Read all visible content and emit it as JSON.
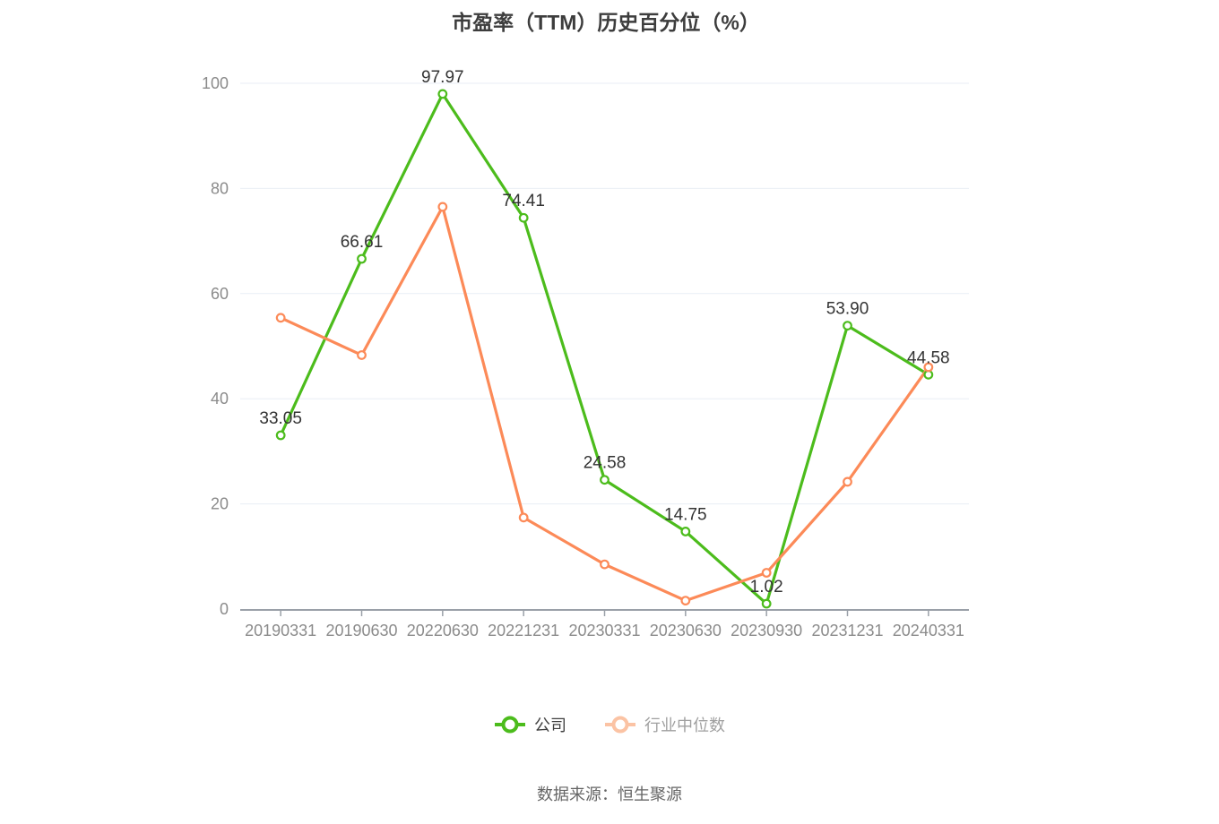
{
  "title": "市盈率（TTM）历史百分位（%）",
  "source": "数据来源：恒生聚源",
  "legend": {
    "items": [
      {
        "label": "公司",
        "color": "#4cbc1c",
        "text_color": "#404040"
      },
      {
        "label": "行业中位数",
        "color": "#fbc3a4",
        "text_color": "#a0a0a0"
      }
    ]
  },
  "chart_data": {
    "type": "line",
    "title": "市盈率（TTM）历史百分位（%）",
    "categories": [
      "20190331",
      "20190630",
      "20220630",
      "20221231",
      "20230331",
      "20230630",
      "20230930",
      "20231231",
      "20240331"
    ],
    "series": [
      {
        "name": "公司",
        "color": "#4cbc1c",
        "values": [
          33.05,
          66.61,
          97.97,
          74.41,
          24.58,
          14.75,
          1.02,
          53.9,
          44.58
        ],
        "data_labels": [
          "33.05",
          "66.61",
          "97.97",
          "74.41",
          "24.58",
          "14.75",
          "1.02",
          "53.90",
          "44.58"
        ]
      },
      {
        "name": "行业中位数",
        "color": "#fc8a58",
        "values": [
          55.4,
          48.3,
          76.5,
          17.4,
          8.5,
          1.6,
          6.9,
          24.2,
          46.0
        ],
        "data_labels": null
      }
    ],
    "xlabel": "",
    "ylabel": "",
    "ylim": [
      0,
      100
    ],
    "y_ticks": [
      0,
      20,
      40,
      60,
      80,
      100
    ],
    "grid": true,
    "legend_position": "bottom",
    "marker": "hollow-circle",
    "colors": {
      "grid": "#e9eef5",
      "axis": "#9aa0a8",
      "axis_label": "#8b8b8b",
      "data_label": "#333333",
      "title": "#3d3d3d",
      "source": "#666666",
      "background": "#ffffff"
    }
  }
}
